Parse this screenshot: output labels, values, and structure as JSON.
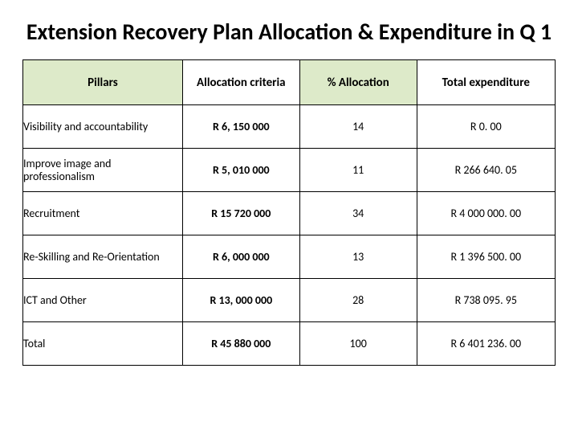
{
  "title": "Extension Recovery Plan Allocation & Expenditure in Q 1",
  "table": {
    "type": "table",
    "header_background": "#ddeac9",
    "border_color": "#000000",
    "columns": [
      {
        "label": "Pillars",
        "align": "left",
        "header_bg": true
      },
      {
        "label": "Allocation criteria",
        "align": "center",
        "header_bg": false
      },
      {
        "label": "% Allocation",
        "align": "center",
        "header_bg": true
      },
      {
        "label": "Total expenditure",
        "align": "center",
        "header_bg": false
      }
    ],
    "rows": [
      {
        "pillar": "Visibility and accountability",
        "allocation": "R 6, 150 000",
        "pct": "14",
        "total": "R 0. 00"
      },
      {
        "pillar": "Improve image and professionalism",
        "allocation": "R 5, 010 000",
        "pct": "11",
        "total": "R 266 640. 05"
      },
      {
        "pillar": "Recruitment",
        "allocation": "R 15 720 000",
        "pct": "34",
        "total": "R 4 000 000. 00"
      },
      {
        "pillar": "Re-Skilling and Re-Orientation",
        "allocation": "R 6, 000 000",
        "pct": "13",
        "total": "R 1 396 500. 00"
      },
      {
        "pillar": "ICT and Other",
        "allocation": "R 13, 000 000",
        "pct": "28",
        "total": "R 738 095. 95"
      },
      {
        "pillar": "Total",
        "allocation": "R 45 880 000",
        "pct": "100",
        "total": "R 6 401 236. 00"
      }
    ]
  }
}
